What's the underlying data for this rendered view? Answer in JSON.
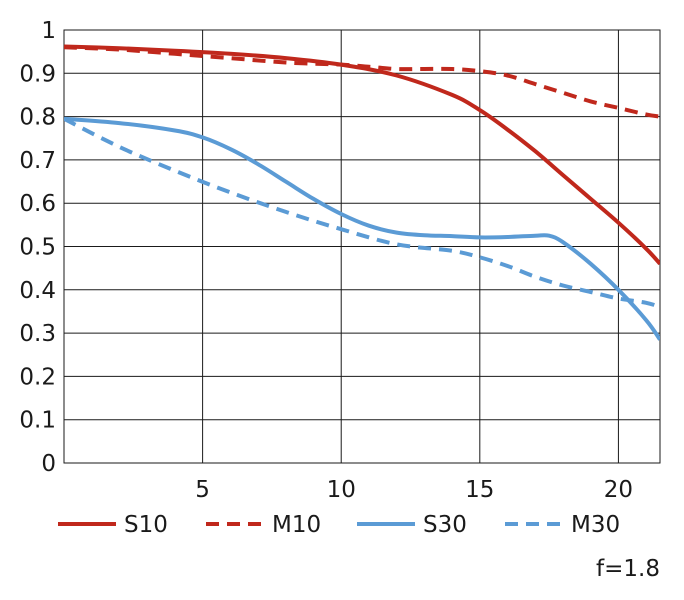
{
  "chart_data": {
    "type": "line",
    "xlim": [
      0,
      21.5
    ],
    "ylim": [
      0,
      1
    ],
    "x_ticks": [
      5,
      10,
      15,
      20
    ],
    "y_ticks": [
      0,
      0.1,
      0.2,
      0.3,
      0.4,
      0.5,
      0.6,
      0.7,
      0.8,
      0.9,
      1
    ],
    "y_tick_labels": [
      "0",
      "0.1",
      "0.2",
      "0.3",
      "0.4",
      "0.5",
      "0.6",
      "0.7",
      "0.8",
      "0.9",
      "1"
    ],
    "x_tick_labels": [
      "5",
      "10",
      "15",
      "20"
    ],
    "grid": true,
    "legend_position": "bottom",
    "annotation": "f=1.8",
    "series": [
      {
        "name": "S10",
        "color": "#c0281c",
        "dash": "solid",
        "x": [
          0,
          2,
          4,
          6,
          8,
          10,
          12,
          14,
          15,
          16,
          17,
          18,
          19,
          20,
          21,
          21.5
        ],
        "y": [
          0.962,
          0.958,
          0.952,
          0.945,
          0.935,
          0.92,
          0.895,
          0.85,
          0.815,
          0.77,
          0.72,
          0.665,
          0.61,
          0.555,
          0.495,
          0.46
        ]
      },
      {
        "name": "M10",
        "color": "#c0281c",
        "dash": "dashed",
        "x": [
          0,
          2,
          4,
          6,
          8,
          10,
          11,
          12,
          13,
          14,
          15,
          16,
          17,
          18,
          19,
          20,
          21,
          21.5
        ],
        "y": [
          0.96,
          0.955,
          0.945,
          0.935,
          0.925,
          0.92,
          0.915,
          0.91,
          0.91,
          0.91,
          0.905,
          0.895,
          0.875,
          0.855,
          0.835,
          0.82,
          0.805,
          0.8
        ]
      },
      {
        "name": "S30",
        "color": "#5b9bd5",
        "dash": "solid",
        "x": [
          0,
          2,
          4,
          5,
          6,
          7,
          8,
          9,
          10,
          11,
          12,
          13,
          14,
          15,
          16,
          17,
          17.5,
          18,
          19,
          20,
          21,
          21.5
        ],
        "y": [
          0.795,
          0.785,
          0.768,
          0.752,
          0.725,
          0.69,
          0.65,
          0.61,
          0.575,
          0.548,
          0.532,
          0.526,
          0.524,
          0.521,
          0.522,
          0.525,
          0.525,
          0.51,
          0.46,
          0.4,
          0.33,
          0.285
        ]
      },
      {
        "name": "M30",
        "color": "#5b9bd5",
        "dash": "dashed",
        "x": [
          0,
          2,
          4,
          6,
          8,
          10,
          12,
          14,
          15,
          16,
          17,
          18,
          19,
          20,
          21,
          21.5
        ],
        "y": [
          0.795,
          0.73,
          0.675,
          0.625,
          0.58,
          0.54,
          0.505,
          0.49,
          0.475,
          0.455,
          0.43,
          0.41,
          0.395,
          0.38,
          0.37,
          0.36
        ]
      }
    ]
  }
}
